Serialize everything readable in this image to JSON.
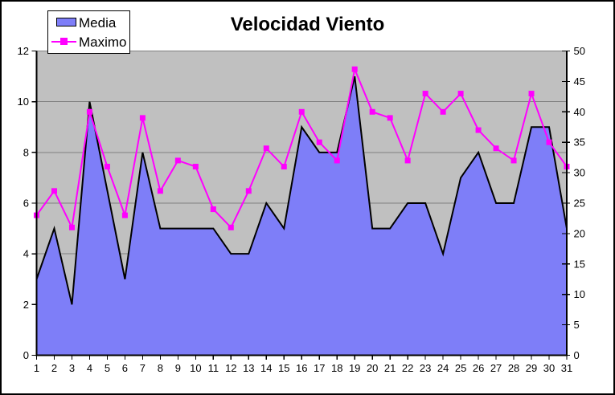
{
  "chart_data": {
    "type": "area",
    "title": "Velocidad Viento",
    "x": [
      1,
      2,
      3,
      4,
      5,
      6,
      7,
      8,
      9,
      10,
      11,
      12,
      13,
      14,
      15,
      16,
      17,
      18,
      19,
      20,
      21,
      22,
      23,
      24,
      25,
      26,
      27,
      28,
      29,
      30,
      31
    ],
    "series": [
      {
        "name": "Media",
        "type": "area",
        "axis": "left",
        "color": "#7E7EF8",
        "border_color": "#000000",
        "values": [
          3,
          5,
          2,
          10,
          6.5,
          3,
          8,
          5,
          5,
          5,
          5,
          4,
          4,
          6,
          5,
          9,
          8,
          8,
          11,
          5,
          5,
          6,
          6,
          4,
          7,
          8,
          6,
          6,
          9,
          9,
          5
        ]
      },
      {
        "name": "Maximo",
        "type": "line",
        "axis": "right",
        "color": "#FF00FF",
        "marker": "square",
        "values": [
          23,
          27,
          21,
          40,
          31,
          23,
          39,
          27,
          32,
          31,
          24,
          21,
          27,
          34,
          31,
          40,
          35,
          32,
          47,
          40,
          39,
          32,
          43,
          40,
          43,
          37,
          34,
          32,
          43,
          35,
          31
        ]
      }
    ],
    "left_axis": {
      "min": 0,
      "max": 12,
      "ticks": [
        0,
        2,
        4,
        6,
        8,
        10,
        12
      ]
    },
    "right_axis": {
      "min": 0,
      "max": 50,
      "ticks": [
        0,
        5,
        10,
        15,
        20,
        25,
        30,
        35,
        40,
        45,
        50
      ]
    },
    "grid": "horizontal",
    "legend_position": "top-left",
    "plot_background": "#C0C0C0",
    "gridline_color": "#808080",
    "axis_color": "#000000"
  }
}
